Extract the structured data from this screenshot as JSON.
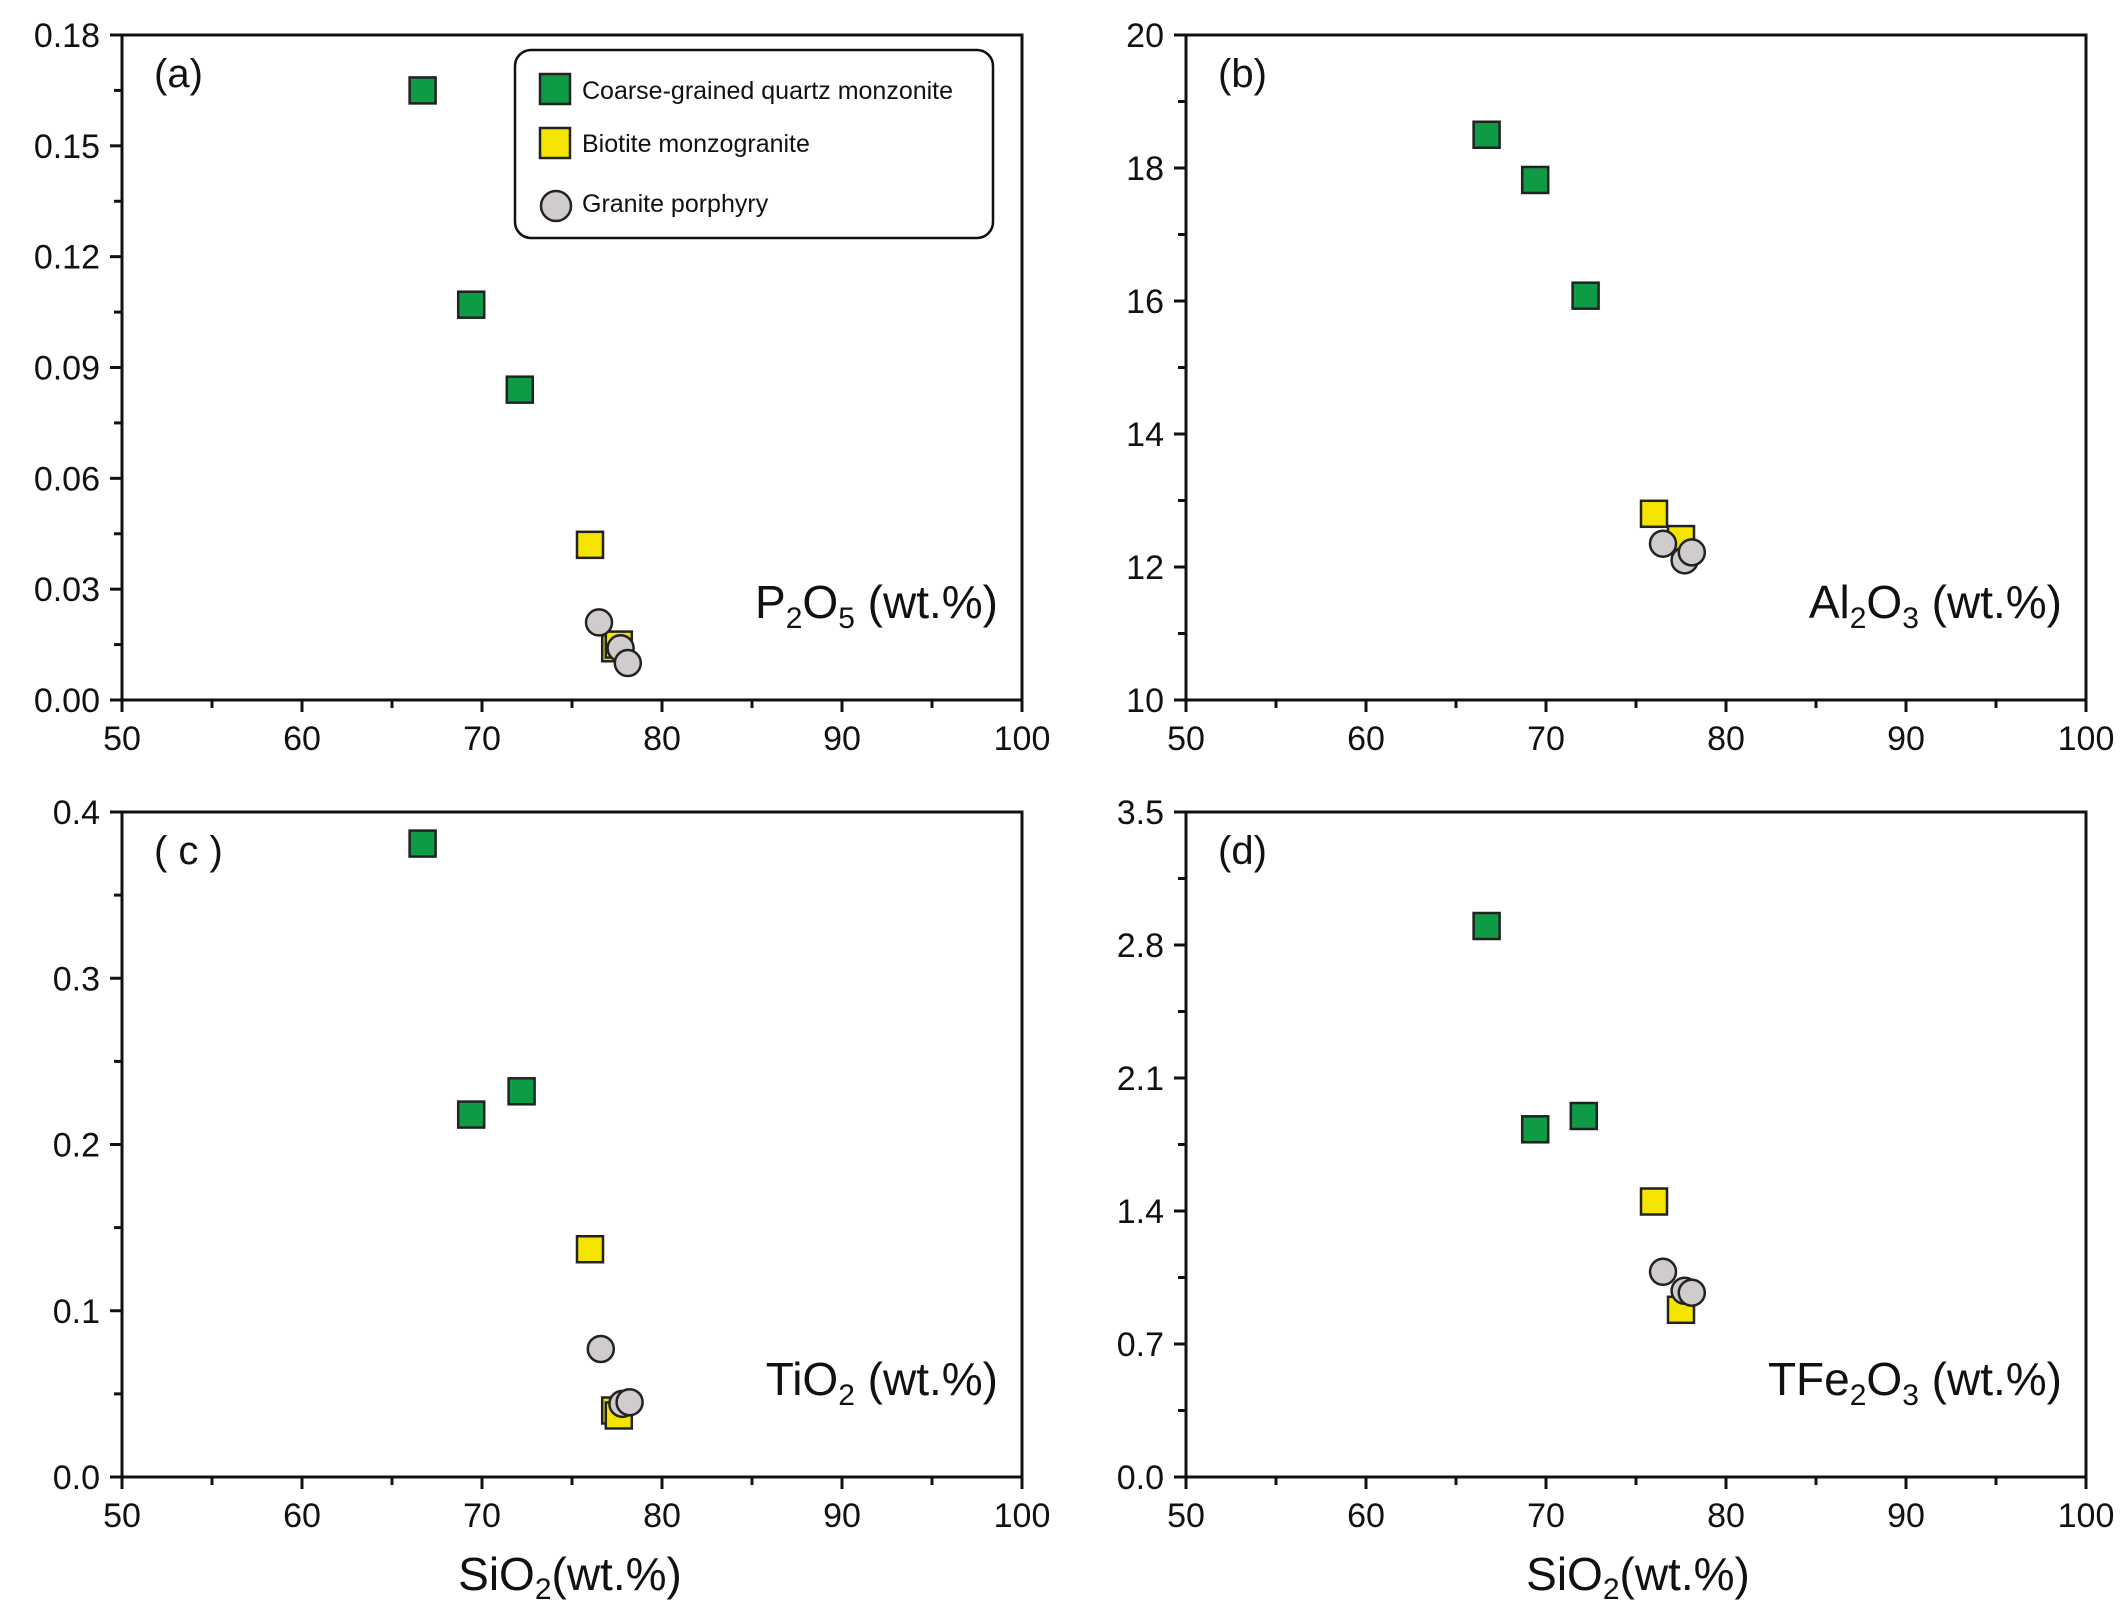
{
  "colors": {
    "coarse": "#0f9b45",
    "biotite": "#f5e400",
    "granite": "#d0cccc",
    "frame": "#111111"
  },
  "legend": {
    "items": [
      {
        "label": "Coarse-grained quartz monzonite",
        "color": "#0f9b45",
        "marker": "square"
      },
      {
        "label": "Biotite monzogranite",
        "color": "#f5e400",
        "marker": "square"
      },
      {
        "label": "Granite porphyry",
        "color": "#d0cccc",
        "marker": "circle"
      }
    ]
  },
  "xlabel": {
    "base": "SiO",
    "sub": "2",
    "tail": "(wt.%)"
  },
  "chart_data": [
    {
      "type": "scatter",
      "panel_label": "(a)",
      "variable": {
        "parts": [
          [
            "P",
            false
          ],
          [
            "2",
            true
          ],
          [
            "O",
            false
          ],
          [
            "5",
            true
          ],
          [
            " (wt.%)",
            false
          ]
        ]
      },
      "xlim": [
        50,
        100
      ],
      "xticks": [
        50,
        60,
        70,
        80,
        90,
        100
      ],
      "xticklabels": [
        "50",
        "60",
        "70",
        "80",
        "90",
        "100"
      ],
      "ylim": [
        0,
        0.18
      ],
      "yticks": [
        0,
        0.03,
        0.06,
        0.09,
        0.12,
        0.15,
        0.18
      ],
      "yticklabels": [
        "0.00",
        "0.03",
        "0.06",
        "0.09",
        "0.12",
        "0.15",
        "0.18"
      ],
      "series": [
        {
          "name": "Coarse-grained quartz monzonite",
          "marker": "square",
          "color": "#0f9b45",
          "x": [
            66.7,
            69.4,
            72.1
          ],
          "y": [
            0.165,
            0.107,
            0.084
          ]
        },
        {
          "name": "Biotite monzogranite",
          "marker": "square",
          "color": "#f5e400",
          "x": [
            76.0,
            77.4,
            77.6
          ],
          "y": [
            0.042,
            0.014,
            0.015
          ]
        },
        {
          "name": "Granite porphyry",
          "marker": "circle",
          "color": "#d0cccc",
          "x": [
            76.5,
            77.7,
            78.1
          ],
          "y": [
            0.021,
            0.014,
            0.01
          ]
        }
      ]
    },
    {
      "type": "scatter",
      "panel_label": "(b)",
      "variable": {
        "parts": [
          [
            "Al",
            false
          ],
          [
            "2",
            true
          ],
          [
            "O",
            false
          ],
          [
            "3",
            true
          ],
          [
            " (wt.%)",
            false
          ]
        ]
      },
      "xlim": [
        50,
        100
      ],
      "xticks": [
        50,
        60,
        70,
        80,
        90,
        100
      ],
      "xticklabels": [
        "50",
        "60",
        "70",
        "80",
        "90",
        "100"
      ],
      "ylim": [
        10,
        20
      ],
      "yticks": [
        10,
        12,
        14,
        16,
        18,
        20
      ],
      "yticklabels": [
        "10",
        "12",
        "14",
        "16",
        "18",
        "20"
      ],
      "series": [
        {
          "name": "Coarse-grained quartz monzonite",
          "marker": "square",
          "color": "#0f9b45",
          "x": [
            66.7,
            69.4,
            72.2
          ],
          "y": [
            18.5,
            17.82,
            16.08
          ]
        },
        {
          "name": "Biotite monzogranite",
          "marker": "square",
          "color": "#f5e400",
          "x": [
            76.0,
            77.5
          ],
          "y": [
            12.8,
            12.42
          ]
        },
        {
          "name": "Granite porphyry",
          "marker": "circle",
          "color": "#d0cccc",
          "x": [
            76.5,
            77.7,
            78.1
          ],
          "y": [
            12.35,
            12.1,
            12.22
          ]
        }
      ]
    },
    {
      "type": "scatter",
      "panel_label": "( c )",
      "variable": {
        "parts": [
          [
            "TiO",
            false
          ],
          [
            "2",
            true
          ],
          [
            " (wt.%)",
            false
          ]
        ]
      },
      "xlim": [
        50,
        100
      ],
      "xticks": [
        50,
        60,
        70,
        80,
        90,
        100
      ],
      "xticklabels": [
        "50",
        "60",
        "70",
        "80",
        "90",
        "100"
      ],
      "ylim": [
        0,
        0.4
      ],
      "yticks": [
        0,
        0.1,
        0.2,
        0.3,
        0.4
      ],
      "yticklabels": [
        "0.0",
        "0.1",
        "0.2",
        "0.3",
        "0.4"
      ],
      "series": [
        {
          "name": "Coarse-grained quartz monzonite",
          "marker": "square",
          "color": "#0f9b45",
          "x": [
            66.7,
            69.4,
            72.2
          ],
          "y": [
            0.381,
            0.218,
            0.232
          ]
        },
        {
          "name": "Biotite monzogranite",
          "marker": "square",
          "color": "#f5e400",
          "x": [
            76.0,
            77.4,
            77.6
          ],
          "y": [
            0.137,
            0.04,
            0.037
          ]
        },
        {
          "name": "Granite porphyry",
          "marker": "circle",
          "color": "#d0cccc",
          "x": [
            76.6,
            77.8,
            78.2
          ],
          "y": [
            0.077,
            0.044,
            0.045
          ]
        }
      ]
    },
    {
      "type": "scatter",
      "panel_label": "(d)",
      "variable": {
        "parts": [
          [
            "TFe",
            false
          ],
          [
            "2",
            true
          ],
          [
            "O",
            false
          ],
          [
            "3",
            true
          ],
          [
            " (wt.%)",
            false
          ]
        ]
      },
      "xlim": [
        50,
        100
      ],
      "xticks": [
        50,
        60,
        70,
        80,
        90,
        100
      ],
      "xticklabels": [
        "50",
        "60",
        "70",
        "80",
        "90",
        "100"
      ],
      "ylim": [
        0,
        3.5
      ],
      "yticks": [
        0,
        0.7,
        1.4,
        2.1,
        2.8,
        3.5
      ],
      "yticklabels": [
        "0.0",
        "0.7",
        "1.4",
        "2.1",
        "2.8",
        "3.5"
      ],
      "series": [
        {
          "name": "Coarse-grained quartz monzonite",
          "marker": "square",
          "color": "#0f9b45",
          "x": [
            66.7,
            69.4,
            72.1
          ],
          "y": [
            2.9,
            1.83,
            1.9
          ]
        },
        {
          "name": "Biotite monzogranite",
          "marker": "square",
          "color": "#f5e400",
          "x": [
            76.0,
            77.5
          ],
          "y": [
            1.45,
            0.88
          ]
        },
        {
          "name": "Granite porphyry",
          "marker": "circle",
          "color": "#d0cccc",
          "x": [
            76.5,
            77.7,
            78.1
          ],
          "y": [
            1.08,
            0.98,
            0.97
          ]
        }
      ]
    }
  ]
}
